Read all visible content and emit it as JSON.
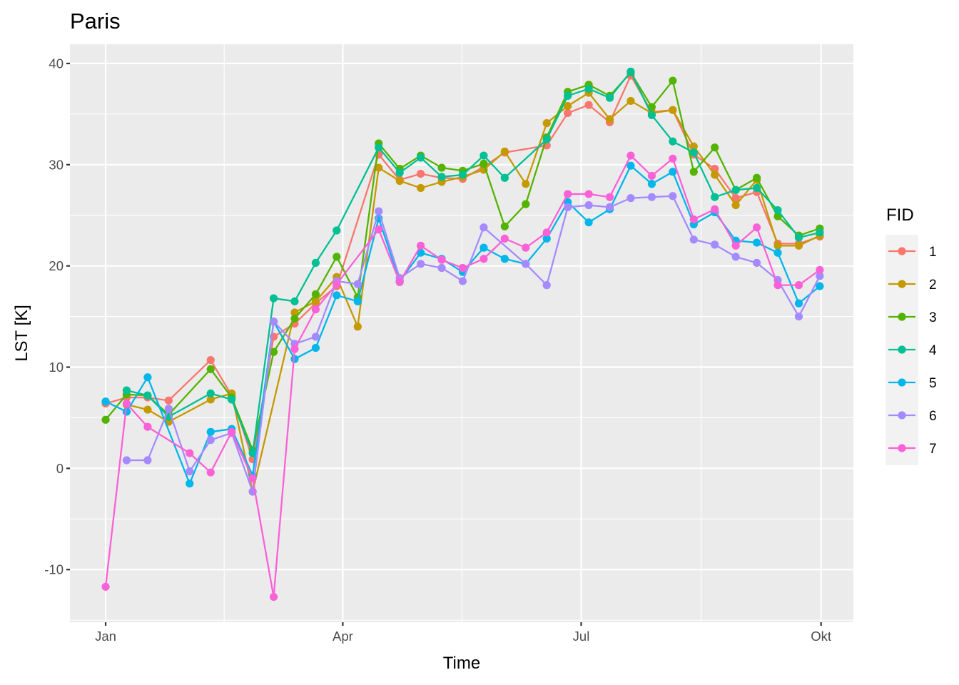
{
  "chart_data": {
    "type": "line",
    "title": "Paris",
    "xlabel": "Time",
    "ylabel": "LST [K]",
    "x_tick_labels": [
      "Jan",
      "Apr",
      "Jul",
      "Okt"
    ],
    "y_tick_labels": [
      "-10",
      "0",
      "10",
      "20",
      "30",
      "40"
    ],
    "y_ticks": [
      -10,
      0,
      10,
      20,
      30,
      40
    ],
    "ylim": [
      -15.2,
      41.9
    ],
    "grid": true,
    "legend_position": "right",
    "legend_title": "FID",
    "x_index_range": [
      -1.7,
      35.6
    ],
    "x_tick_index": [
      0,
      11.29,
      22.64,
      34.06
    ],
    "x": [
      0,
      1,
      2,
      3,
      4,
      5,
      6,
      7,
      8,
      9,
      10,
      11,
      12,
      13,
      14,
      15,
      16,
      17,
      18,
      19,
      20,
      21,
      22,
      23,
      24,
      25,
      26,
      27,
      28,
      29,
      30,
      31,
      32,
      33,
      34
    ],
    "series": [
      {
        "name": "1",
        "color": "#F8766D",
        "values": [
          6.4,
          7.0,
          7.0,
          6.7,
          null,
          10.7,
          7.2,
          0.9,
          13.0,
          14.3,
          16.3,
          18.0,
          null,
          31.0,
          28.5,
          29.1,
          28.7,
          28.6,
          29.8,
          31.2,
          null,
          31.9,
          35.1,
          35.9,
          34.2,
          38.8,
          35.2,
          35.4,
          31.0,
          29.6,
          26.7,
          27.3,
          22.2,
          22.2,
          22.9
        ]
      },
      {
        "name": "2",
        "color": "#C49A00",
        "values": [
          null,
          6.3,
          5.8,
          4.6,
          null,
          6.8,
          7.4,
          -2.3,
          null,
          15.4,
          16.5,
          18.9,
          14.0,
          29.7,
          28.4,
          27.7,
          28.3,
          28.8,
          29.5,
          31.3,
          28.1,
          34.1,
          35.8,
          37.1,
          34.5,
          36.3,
          35.1,
          35.4,
          31.8,
          29.0,
          26.0,
          28.5,
          22.0,
          22.0,
          23.0
        ]
      },
      {
        "name": "3",
        "color": "#53B400",
        "values": [
          4.8,
          7.3,
          7.2,
          5.3,
          null,
          9.8,
          7.0,
          1.8,
          11.5,
          14.8,
          17.2,
          20.9,
          16.9,
          32.1,
          29.6,
          30.9,
          29.7,
          29.4,
          30.1,
          23.9,
          26.1,
          32.7,
          37.2,
          37.9,
          36.8,
          39.1,
          35.7,
          38.3,
          29.3,
          31.7,
          27.5,
          28.7,
          24.9,
          23.0,
          23.7
        ]
      },
      {
        "name": "4",
        "color": "#00C094",
        "values": [
          null,
          7.7,
          7.2,
          5.1,
          null,
          7.4,
          6.8,
          1.5,
          16.8,
          16.5,
          20.3,
          23.5,
          null,
          31.7,
          29.2,
          30.7,
          28.8,
          29.0,
          30.9,
          28.7,
          null,
          32.5,
          36.8,
          37.5,
          36.6,
          39.2,
          34.9,
          32.3,
          31.2,
          26.8,
          27.5,
          27.7,
          25.5,
          22.8,
          23.3
        ]
      },
      {
        "name": "5",
        "color": "#00B6EB",
        "values": [
          6.6,
          5.6,
          9.0,
          null,
          -1.5,
          3.6,
          3.9,
          -0.7,
          14.5,
          10.8,
          11.9,
          17.1,
          16.5,
          24.7,
          18.5,
          21.3,
          20.7,
          19.4,
          21.8,
          20.7,
          20.2,
          22.7,
          26.3,
          24.3,
          25.6,
          29.9,
          28.1,
          29.3,
          24.1,
          25.3,
          22.5,
          22.3,
          21.3,
          16.3,
          18.0
        ]
      },
      {
        "name": "6",
        "color": "#A58AFF",
        "values": [
          null,
          0.8,
          0.8,
          5.9,
          -0.3,
          2.8,
          3.5,
          -2.3,
          14.5,
          12.3,
          13.0,
          18.5,
          18.2,
          25.4,
          18.8,
          20.2,
          19.8,
          18.5,
          23.8,
          null,
          20.2,
          18.1,
          25.8,
          26.0,
          25.8,
          26.7,
          26.8,
          26.9,
          22.6,
          22.1,
          20.9,
          20.3,
          18.6,
          15.0,
          19.0
        ]
      },
      {
        "name": "7",
        "color": "#FB61D7",
        "values": [
          -11.7,
          6.4,
          4.1,
          null,
          1.5,
          -0.4,
          3.6,
          -1.0,
          -12.7,
          11.8,
          15.7,
          18.2,
          null,
          23.6,
          18.4,
          22.0,
          20.6,
          19.8,
          20.7,
          22.7,
          21.8,
          23.3,
          27.1,
          27.1,
          26.8,
          30.9,
          28.9,
          30.6,
          24.6,
          25.6,
          22.0,
          23.8,
          18.1,
          18.1,
          19.6
        ]
      }
    ]
  },
  "colors": {
    "panel_bg": "#EBEBEB",
    "grid_major": "#FFFFFF",
    "tick_mark": "#333333",
    "legend_key_bg": "#F2F2F2"
  }
}
